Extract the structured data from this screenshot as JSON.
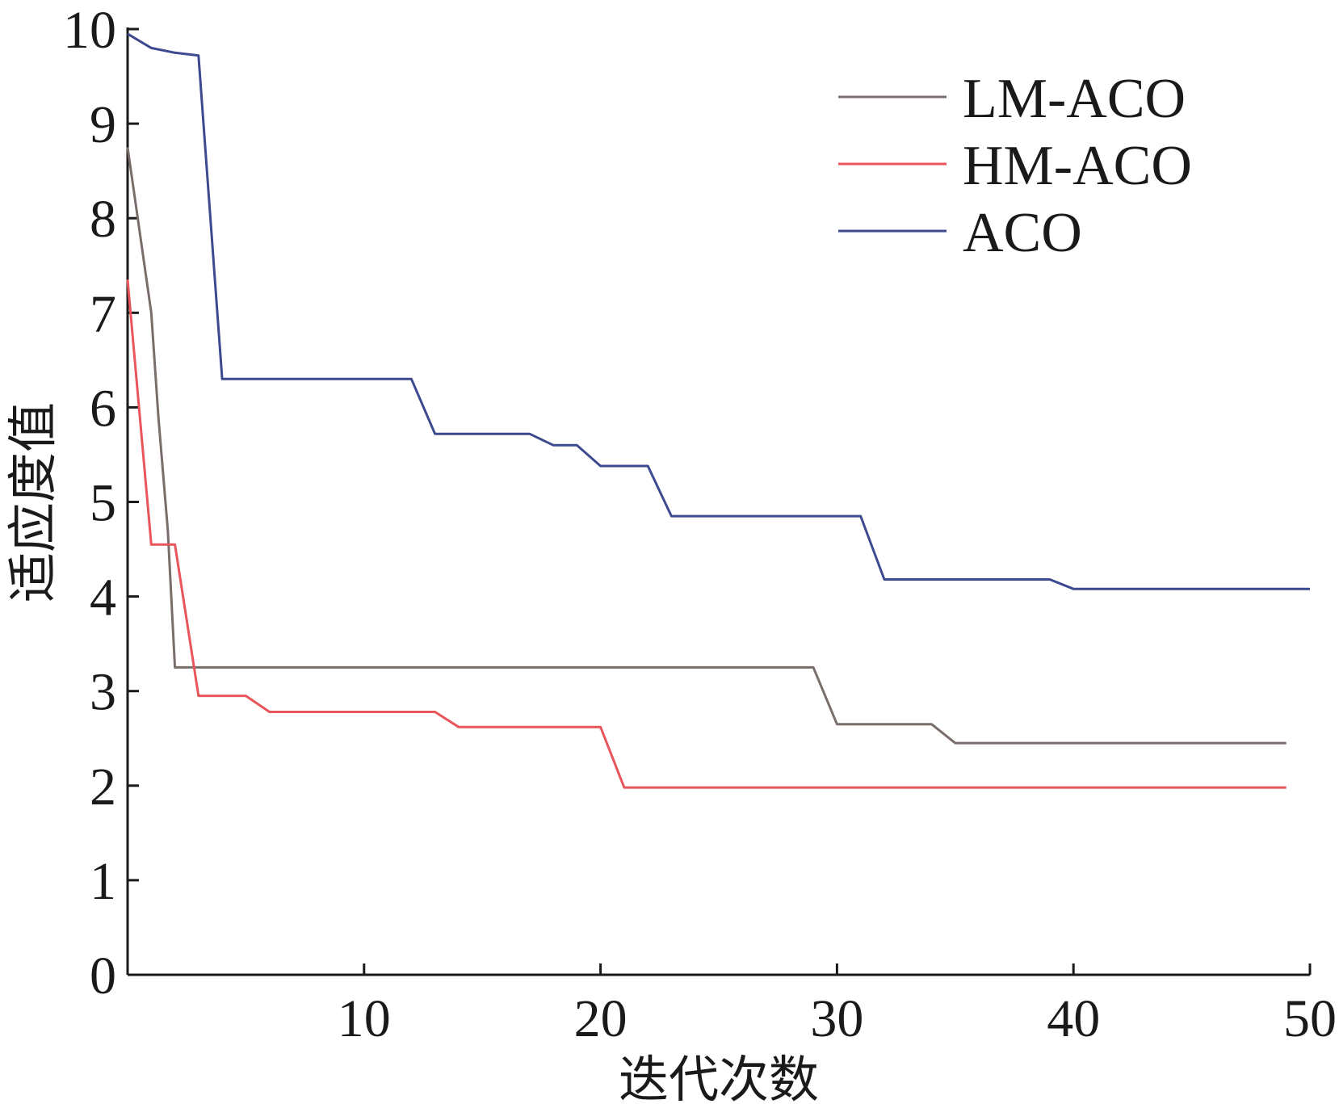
{
  "chart_data": {
    "type": "line",
    "xlabel": "迭代次数",
    "ylabel": "适应度值",
    "xlim": [
      0,
      50
    ],
    "ylim": [
      0,
      10
    ],
    "xticks": [
      10,
      20,
      30,
      40,
      50
    ],
    "yticks": [
      0,
      1,
      2,
      3,
      4,
      5,
      6,
      7,
      8,
      9,
      10
    ],
    "grid": false,
    "legend_position": "top-right",
    "series": [
      {
        "name": "LM-ACO",
        "color": "#7a6e6a",
        "points": [
          [
            0,
            8.75
          ],
          [
            1,
            7.0
          ],
          [
            1.3,
            5.9
          ],
          [
            1.7,
            4.7
          ],
          [
            2,
            3.25
          ],
          [
            3,
            3.25
          ],
          [
            29,
            3.25
          ],
          [
            30,
            2.65
          ],
          [
            34,
            2.65
          ],
          [
            35,
            2.45
          ],
          [
            49,
            2.45
          ]
        ]
      },
      {
        "name": "HM-ACO",
        "color": "#e8555a",
        "points": [
          [
            0,
            7.35
          ],
          [
            1,
            4.55
          ],
          [
            2,
            4.55
          ],
          [
            3,
            2.95
          ],
          [
            5,
            2.95
          ],
          [
            6,
            2.78
          ],
          [
            13,
            2.78
          ],
          [
            14,
            2.62
          ],
          [
            20,
            2.62
          ],
          [
            21,
            1.98
          ],
          [
            49,
            1.98
          ]
        ]
      },
      {
        "name": "ACO",
        "color": "#3d4a8f",
        "points": [
          [
            0,
            9.95
          ],
          [
            1,
            9.8
          ],
          [
            2,
            9.75
          ],
          [
            3,
            9.72
          ],
          [
            4,
            6.3
          ],
          [
            12,
            6.3
          ],
          [
            13,
            5.72
          ],
          [
            17,
            5.72
          ],
          [
            18,
            5.6
          ],
          [
            19,
            5.6
          ],
          [
            20,
            5.38
          ],
          [
            22,
            5.38
          ],
          [
            23,
            4.85
          ],
          [
            31,
            4.85
          ],
          [
            32,
            4.18
          ],
          [
            39,
            4.18
          ],
          [
            40,
            4.08
          ],
          [
            50,
            4.08
          ]
        ]
      }
    ]
  }
}
